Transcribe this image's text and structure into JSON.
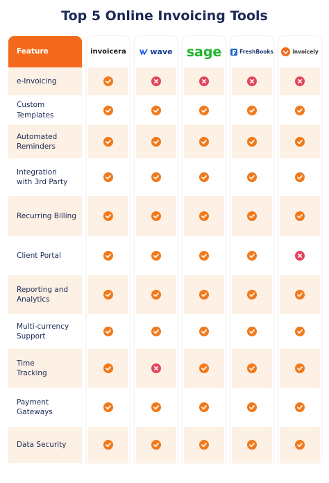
{
  "title": "Top 5 Online Invoicing Tools",
  "table": {
    "header": [
      "Feature",
      "invoicera",
      "wave",
      "sage",
      "FreshBooks",
      "invoicely"
    ],
    "rows": [
      {
        "feature": "e-Invoicing",
        "support": [
          true,
          false,
          false,
          false,
          false
        ]
      },
      {
        "feature": "Custom\nTemplates",
        "support": [
          true,
          true,
          true,
          true,
          true
        ]
      },
      {
        "feature": "Automated\nReminders",
        "support": [
          true,
          true,
          true,
          true,
          true
        ]
      },
      {
        "feature": "Integration\nwith 3rd Party",
        "support": [
          true,
          true,
          true,
          true,
          true
        ]
      },
      {
        "feature": "Recurring Billing",
        "support": [
          true,
          true,
          true,
          true,
          true
        ]
      },
      {
        "feature": "Client Portal",
        "support": [
          true,
          true,
          true,
          true,
          false
        ]
      },
      {
        "feature": "Reporting and\nAnalytics",
        "support": [
          true,
          true,
          true,
          true,
          true
        ]
      },
      {
        "feature": "Multi-currency\nSupport",
        "support": [
          true,
          true,
          true,
          true,
          true
        ]
      },
      {
        "feature": "Time\nTracking",
        "support": [
          true,
          false,
          true,
          true,
          true
        ]
      },
      {
        "feature": "Payment\nGateways",
        "support": [
          true,
          true,
          true,
          true,
          true
        ]
      },
      {
        "feature": "Data Security",
        "support": [
          true,
          true,
          true,
          true,
          true
        ]
      }
    ]
  }
}
